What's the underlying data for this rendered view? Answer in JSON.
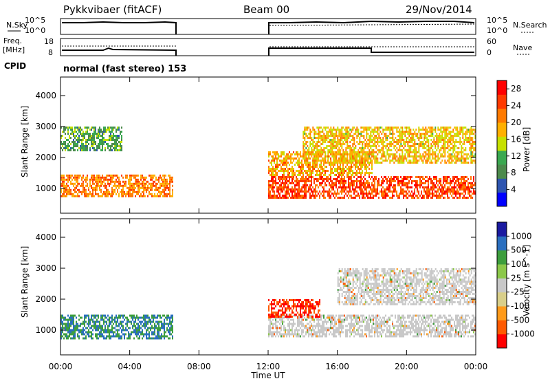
{
  "header": {
    "radar": "Pykkvibaer (fitACF)",
    "beam": "Beam 00",
    "date": "29/Nov/2014"
  },
  "noise_panel": {
    "left_label": "N.Sky",
    "left_ticks": [
      "10^5",
      "10^0"
    ],
    "right_label": "N.Search",
    "right_ticks": [
      "10^5",
      "10^0"
    ]
  },
  "freq_panel": {
    "left_label_1": "Freq.",
    "left_label_2": "[MHz]",
    "left_ticks": [
      "18",
      "8"
    ],
    "right_label": "Nave",
    "right_ticks": [
      "60",
      "0"
    ]
  },
  "cpid": {
    "label": "CPID",
    "text": "normal (fast stereo) 153"
  },
  "colors": {
    "power_scale": [
      "#0000ff",
      "#2e55b0",
      "#4c8a4c",
      "#3aa850",
      "#c6e000",
      "#ffb000",
      "#ff7a00",
      "#ff3a00",
      "#ff0000"
    ],
    "velocity_scale": [
      "#ff0000",
      "#ff5a00",
      "#ff9a1a",
      "#d9cf8a",
      "#c8c8c8",
      "#8cc84a",
      "#3d9e3d",
      "#2a6fbf",
      "#1a1aa0"
    ]
  },
  "chart_data": [
    {
      "type": "heatmap",
      "title": "Power",
      "xlabel": "Time UT",
      "ylabel": "Slant Range [km]",
      "x_ticks": [
        "00:00",
        "04:00",
        "08:00",
        "12:00",
        "16:00",
        "20:00",
        "00:00"
      ],
      "xlim": [
        0,
        24
      ],
      "y_ticks": [
        "1000",
        "2000",
        "3000",
        "4000"
      ],
      "ylim": [
        200,
        4600
      ],
      "colorbar": {
        "label": "Power [dB]",
        "ticks": [
          "4",
          "8",
          "12",
          "16",
          "20",
          "24",
          "28"
        ],
        "range": [
          0,
          30
        ]
      },
      "data_gaps": [
        [
          6.5,
          12.0
        ]
      ],
      "regions": [
        {
          "name": "main E/F echoes",
          "t": [
            0.0,
            6.5
          ],
          "r": [
            750,
            1450
          ],
          "level_db": 22
        },
        {
          "name": "far-range band",
          "t": [
            0.0,
            3.5
          ],
          "r": [
            2200,
            3000
          ],
          "level_db": 10
        },
        {
          "name": "near-range strong band",
          "t": [
            12.0,
            24.0
          ],
          "r": [
            700,
            1400
          ],
          "level_db": 26
        },
        {
          "name": "mid-range band",
          "t": [
            12.0,
            18.0
          ],
          "r": [
            1400,
            2200
          ],
          "level_db": 20
        },
        {
          "name": "oblique streaks",
          "t": [
            14.0,
            24.0
          ],
          "r": [
            1800,
            3000
          ],
          "level_db": 18
        }
      ]
    },
    {
      "type": "heatmap",
      "title": "Velocity",
      "xlabel": "Time UT",
      "ylabel": "Slant Range [km]",
      "x_ticks": [
        "00:00",
        "04:00",
        "08:00",
        "12:00",
        "16:00",
        "20:00",
        "00:00"
      ],
      "xlim": [
        0,
        24
      ],
      "y_ticks": [
        "1000",
        "2000",
        "3000",
        "4000"
      ],
      "ylim": [
        200,
        4600
      ],
      "colorbar": {
        "label": "Velocity [m s^-1]",
        "ticks": [
          "1000",
          "500",
          "100",
          "25",
          "-25",
          "-100",
          "-500",
          "-1000"
        ]
      },
      "data_gaps": [
        [
          6.5,
          12.0
        ]
      ],
      "regions": [
        {
          "name": "mixed positive velocities",
          "t": [
            0.0,
            6.5
          ],
          "r": [
            700,
            1500
          ],
          "velocity": 500
        },
        {
          "name": "ground scatter",
          "t": [
            12.0,
            24.0
          ],
          "r": [
            800,
            1500
          ],
          "velocity": 0
        },
        {
          "name": "negative streak",
          "t": [
            12.0,
            15.0
          ],
          "r": [
            1400,
            2000
          ],
          "velocity": -500
        },
        {
          "name": "ground scatter streaks",
          "t": [
            16.0,
            24.0
          ],
          "r": [
            1800,
            3000
          ],
          "velocity": 0
        }
      ]
    }
  ],
  "x_axis_title": "Time UT"
}
